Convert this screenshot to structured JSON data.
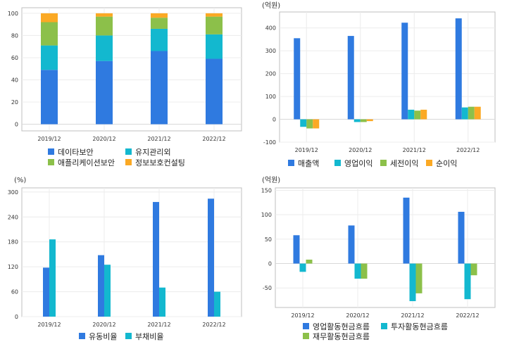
{
  "chart_data": [
    {
      "type": "bar",
      "stacked": true,
      "categories": [
        "2019/12",
        "2020/12",
        "2021/12",
        "2022/12"
      ],
      "series": [
        {
          "name": "데이타보안",
          "color": "#2f7ae0",
          "values": [
            49,
            57,
            66,
            59
          ]
        },
        {
          "name": "유지관리외",
          "color": "#13b8cf",
          "values": [
            22,
            23,
            20,
            22
          ]
        },
        {
          "name": "애플리케이션보안",
          "color": "#8cc04a",
          "values": [
            21,
            17,
            10,
            16
          ]
        },
        {
          "name": "정보보호컨설팅",
          "color": "#fba924",
          "values": [
            8,
            3,
            4,
            3
          ]
        }
      ],
      "unit": "",
      "yticks": [
        0,
        20,
        40,
        60,
        80,
        100
      ],
      "ylim": [
        -6,
        105
      ],
      "grid": true,
      "legend": "bottom"
    },
    {
      "type": "bar",
      "categories": [
        "2019/12",
        "2020/12",
        "2021/12",
        "2022/12"
      ],
      "series": [
        {
          "name": "매출액",
          "color": "#2f7ae0",
          "values": [
            355,
            365,
            423,
            442
          ]
        },
        {
          "name": "영업이익",
          "color": "#13b8cf",
          "values": [
            -33,
            -12,
            42,
            52
          ]
        },
        {
          "name": "세전이익",
          "color": "#8cc04a",
          "values": [
            -40,
            -12,
            38,
            55
          ]
        },
        {
          "name": "순이익",
          "color": "#fba924",
          "values": [
            -40,
            -8,
            42,
            55
          ]
        }
      ],
      "unit": "(억원)",
      "yticks": [
        -100,
        0,
        100,
        200,
        300,
        400
      ],
      "ylim": [
        -100,
        470
      ],
      "grid": true,
      "legend": "bottom"
    },
    {
      "type": "bar",
      "categories": [
        "2019/12",
        "2020/12",
        "2021/12",
        "2022/12"
      ],
      "series": [
        {
          "name": "유동비율",
          "color": "#2f7ae0",
          "values": [
            118,
            148,
            276,
            284
          ]
        },
        {
          "name": "부채비율",
          "color": "#13b8cf",
          "values": [
            186,
            125,
            70,
            60
          ]
        }
      ],
      "unit": "(%)",
      "yticks": [
        0,
        60,
        120,
        180,
        240,
        300
      ],
      "ylim": [
        0,
        310
      ],
      "grid": true,
      "legend": "bottom"
    },
    {
      "type": "bar",
      "categories": [
        "2019/12",
        "2020/12",
        "2021/12",
        "2022/12"
      ],
      "series": [
        {
          "name": "영업활동현금흐름",
          "color": "#2f7ae0",
          "values": [
            58,
            78,
            135,
            106
          ]
        },
        {
          "name": "투자활동현금흐름",
          "color": "#13b8cf",
          "values": [
            -17,
            -31,
            -77,
            -73
          ]
        },
        {
          "name": "재무활동현금흐름",
          "color": "#8cc04a",
          "values": [
            8,
            -31,
            -61,
            -24
          ]
        }
      ],
      "unit": "(억원)",
      "yticks": [
        -50,
        0,
        50,
        100,
        150
      ],
      "ylim": [
        -90,
        155
      ],
      "grid": true,
      "legend": "bottom"
    }
  ]
}
